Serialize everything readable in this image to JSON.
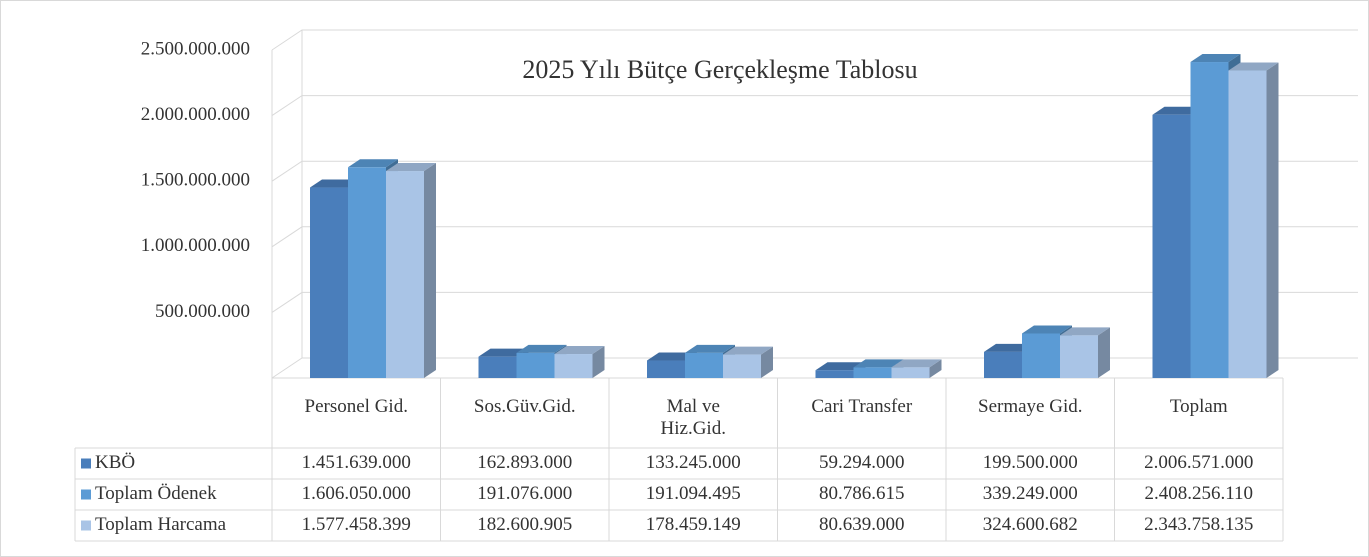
{
  "chart_data": {
    "type": "bar3d",
    "title": "2025 Yılı Bütçe Gerçekleşme Tablosu",
    "categories": [
      "Personel Gid.",
      "Sos.Güv.Gid.",
      "Mal ve Hiz.Gid.",
      "Cari Transfer",
      "Sermaye Gid.",
      "Toplam"
    ],
    "series": [
      {
        "name": "KBÖ",
        "color": "#4a7ebb",
        "values": [
          1451639000,
          162893000,
          133245000,
          59294000,
          199500000,
          2006571000
        ],
        "value_labels": [
          "1.451.639.000",
          "162.893.000",
          "133.245.000",
          "59.294.000",
          "199.500.000",
          "2.006.571.000"
        ]
      },
      {
        "name": "Toplam Ödenek",
        "color": "#5b9bd5",
        "values": [
          1606050000,
          191076000,
          191094495,
          80786615,
          339249000,
          2408256110
        ],
        "value_labels": [
          "1.606.050.000",
          "191.076.000",
          "191.094.495",
          "80.786.615",
          "339.249.000",
          "2.408.256.110"
        ]
      },
      {
        "name": "Toplam Harcama",
        "color": "#a9c4e6",
        "values": [
          1577458399,
          182600905,
          178459149,
          80639000,
          324600682,
          2343758135
        ],
        "value_labels": [
          "1.577.458.399",
          "182.600.905",
          "178.459.149",
          "80.639.000",
          "324.600.682",
          "2.343.758.135"
        ]
      }
    ],
    "ylim": [
      0,
      2500000000
    ],
    "yticks": [
      {
        "value": 500000000,
        "label": "500.000.000"
      },
      {
        "value": 1000000000,
        "label": "1.000.000.000"
      },
      {
        "value": 1500000000,
        "label": "1.500.000.000"
      },
      {
        "value": 2000000000,
        "label": "2.000.000.000"
      },
      {
        "value": 2500000000,
        "label": "2.500.000.000"
      }
    ],
    "grid": true
  }
}
